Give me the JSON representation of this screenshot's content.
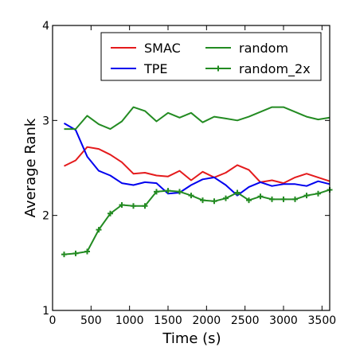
{
  "chart_data": {
    "type": "line",
    "title": "",
    "xlabel": "Time (s)",
    "ylabel": "Average Rank",
    "xlim": [
      0,
      3600
    ],
    "ylim": [
      1,
      4
    ],
    "xticks": [
      0,
      500,
      1000,
      1500,
      2000,
      2500,
      3000,
      3500
    ],
    "yticks": [
      1,
      2,
      3,
      4
    ],
    "grid": false,
    "legend_position": "top-right",
    "x": [
      150,
      300,
      450,
      600,
      750,
      900,
      1050,
      1200,
      1350,
      1500,
      1650,
      1800,
      1950,
      2100,
      2250,
      2400,
      2550,
      2700,
      2850,
      3000,
      3150,
      3300,
      3450,
      3600
    ],
    "series": [
      {
        "name": "SMAC",
        "color": "#e41a1c",
        "marker": "none",
        "values": [
          2.52,
          2.58,
          2.72,
          2.7,
          2.64,
          2.56,
          2.44,
          2.45,
          2.42,
          2.41,
          2.47,
          2.37,
          2.46,
          2.4,
          2.45,
          2.53,
          2.48,
          2.35,
          2.37,
          2.34,
          2.4,
          2.44,
          2.4,
          2.36
        ]
      },
      {
        "name": "TPE",
        "color": "#0000ee",
        "marker": "none",
        "values": [
          2.97,
          2.9,
          2.62,
          2.47,
          2.42,
          2.34,
          2.32,
          2.35,
          2.34,
          2.23,
          2.24,
          2.32,
          2.38,
          2.4,
          2.32,
          2.21,
          2.3,
          2.35,
          2.31,
          2.33,
          2.33,
          2.31,
          2.36,
          2.33
        ]
      },
      {
        "name": "random",
        "color": "#238b22",
        "marker": "none",
        "values": [
          2.91,
          2.91,
          3.05,
          2.96,
          2.91,
          2.99,
          3.14,
          3.1,
          2.99,
          3.08,
          3.03,
          3.08,
          2.98,
          3.04,
          3.02,
          3.0,
          3.04,
          3.09,
          3.14,
          3.14,
          3.09,
          3.04,
          3.01,
          3.03
        ]
      },
      {
        "name": "random_2x",
        "color": "#238b22",
        "marker": "plus",
        "values": [
          1.59,
          1.6,
          1.62,
          1.85,
          2.02,
          2.11,
          2.1,
          2.1,
          2.25,
          2.26,
          2.25,
          2.21,
          2.16,
          2.15,
          2.18,
          2.24,
          2.16,
          2.2,
          2.17,
          2.17,
          2.17,
          2.21,
          2.23,
          2.27
        ]
      }
    ]
  }
}
